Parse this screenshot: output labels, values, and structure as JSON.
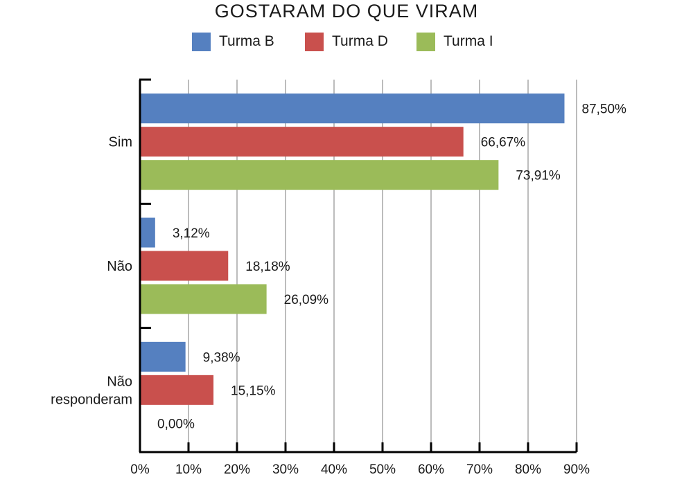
{
  "chart_data": {
    "type": "bar",
    "orientation": "horizontal",
    "title": "GOSTARAM DO QUE VIRAM",
    "categories": [
      "Sim",
      "Não",
      "Não\nresponderam"
    ],
    "series": [
      {
        "name": "Turma B",
        "color": "#5580c0",
        "values": [
          87.5,
          3.12,
          9.38
        ],
        "labels": [
          "87,50%",
          "3,12%",
          "9,38%"
        ]
      },
      {
        "name": "Turma D",
        "color": "#c9504d",
        "values": [
          66.67,
          18.18,
          15.15
        ],
        "labels": [
          "66,67%",
          "18,18%",
          "15,15%"
        ]
      },
      {
        "name": "Turma I",
        "color": "#9bbb59",
        "values": [
          73.91,
          26.09,
          0
        ],
        "labels": [
          "73,91%",
          "26,09%",
          "0,00%"
        ]
      }
    ],
    "xlim": [
      0,
      90
    ],
    "xticks": [
      0,
      10,
      20,
      30,
      40,
      50,
      60,
      70,
      80,
      90
    ],
    "xtick_labels": [
      "0%",
      "10%",
      "20%",
      "30%",
      "40%",
      "50%",
      "60%",
      "70%",
      "80%",
      "90%"
    ],
    "grid": "vertical",
    "legend": "top"
  }
}
